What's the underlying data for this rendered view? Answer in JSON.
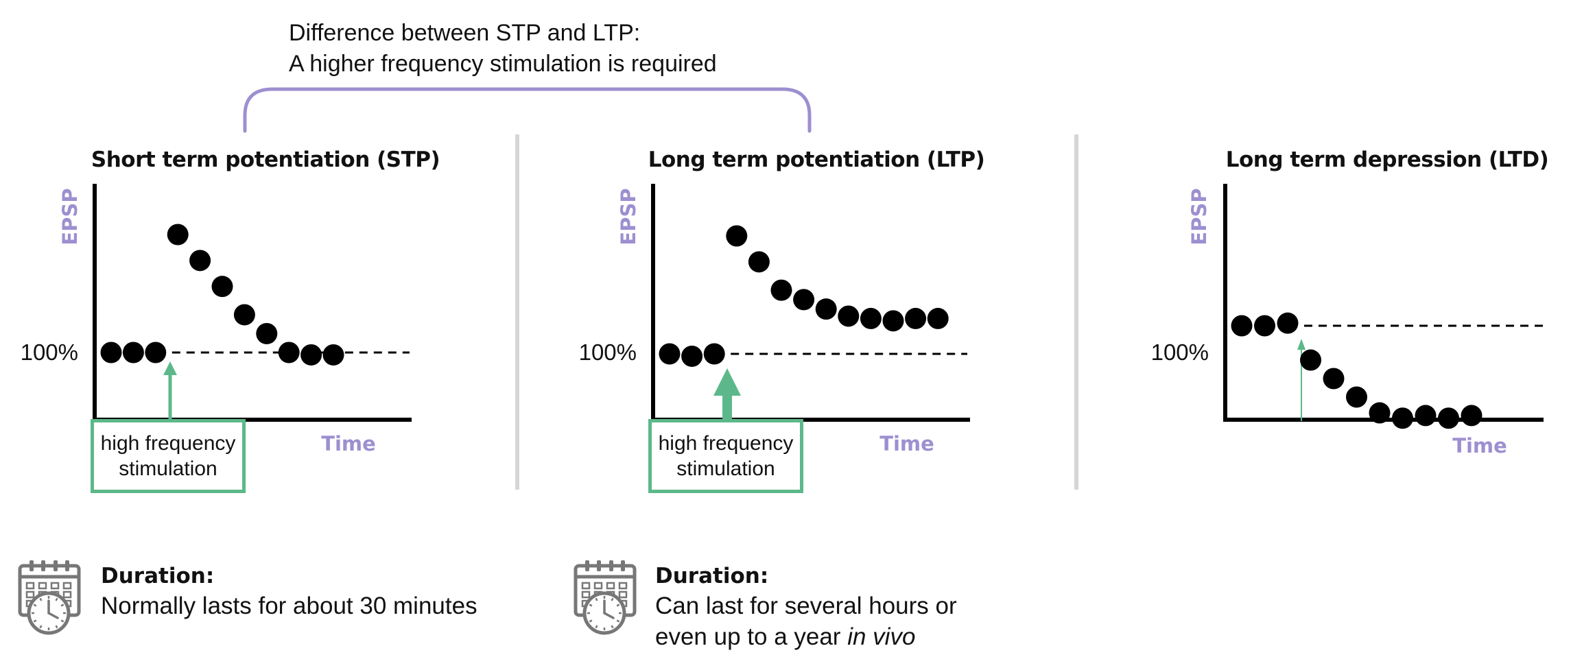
{
  "comparison": {
    "line1": "Difference between STP and LTP:",
    "line2": "A higher frequency stimulation is required",
    "bracket_color": "#9d8fd0"
  },
  "colors": {
    "axis_label": "#9d8fd0",
    "stimulation": "#5cb88a",
    "divider": "#d6d6d6",
    "marks": "#000000"
  },
  "panels": [
    {
      "title": "Short term potentiation (STP)",
      "y_label": "EPSP",
      "x_label": "Time",
      "baseline_label": "100%",
      "stimulation_label": [
        "high frequency",
        "stimulation"
      ],
      "arrow": "thin",
      "points": [
        {
          "t": 0,
          "epsp": 100
        },
        {
          "t": 1,
          "epsp": 100
        },
        {
          "t": 2,
          "epsp": 100
        },
        {
          "t": 3,
          "epsp": 150
        },
        {
          "t": 4,
          "epsp": 139
        },
        {
          "t": 5,
          "epsp": 128
        },
        {
          "t": 6,
          "epsp": 116
        },
        {
          "t": 7,
          "epsp": 108
        },
        {
          "t": 8,
          "epsp": 100
        },
        {
          "t": 9,
          "epsp": 99
        },
        {
          "t": 10,
          "epsp": 99
        }
      ]
    },
    {
      "title": "Long term potentiation (LTP)",
      "y_label": "EPSP",
      "x_label": "Time",
      "baseline_label": "100%",
      "stimulation_label": [
        "high frequency",
        "stimulation"
      ],
      "arrow": "thick",
      "points": [
        {
          "t": 0,
          "epsp": 100
        },
        {
          "t": 1,
          "epsp": 99
        },
        {
          "t": 2,
          "epsp": 100
        },
        {
          "t": 3,
          "epsp": 150
        },
        {
          "t": 4,
          "epsp": 139
        },
        {
          "t": 5,
          "epsp": 127
        },
        {
          "t": 6,
          "epsp": 123
        },
        {
          "t": 7,
          "epsp": 119
        },
        {
          "t": 8,
          "epsp": 116
        },
        {
          "t": 9,
          "epsp": 115
        },
        {
          "t": 10,
          "epsp": 114
        },
        {
          "t": 11,
          "epsp": 115
        },
        {
          "t": 12,
          "epsp": 115
        }
      ]
    },
    {
      "title": "Long term depression (LTD)",
      "y_label": "EPSP",
      "x_label": "Time",
      "baseline_label": "100%",
      "arrow": "hairline",
      "points": [
        {
          "t": 0,
          "epsp": 100
        },
        {
          "t": 1,
          "epsp": 100
        },
        {
          "t": 2,
          "epsp": 101
        },
        {
          "t": 3,
          "epsp": 87
        },
        {
          "t": 4,
          "epsp": 80
        },
        {
          "t": 5,
          "epsp": 73
        },
        {
          "t": 6,
          "epsp": 67
        },
        {
          "t": 7,
          "epsp": 65
        },
        {
          "t": 8,
          "epsp": 66
        },
        {
          "t": 9,
          "epsp": 65
        },
        {
          "t": 10,
          "epsp": 66
        }
      ]
    }
  ],
  "durations": [
    {
      "icon": "calendar-clock-icon",
      "heading": "Duration:",
      "text": "Normally lasts for about 30 minutes"
    },
    {
      "icon": "calendar-clock-icon",
      "heading": "Duration:",
      "text_line1": "Can last for several hours or",
      "text_line2_prefix": "even up to a year ",
      "text_line2_italic": "in vivo"
    }
  ]
}
